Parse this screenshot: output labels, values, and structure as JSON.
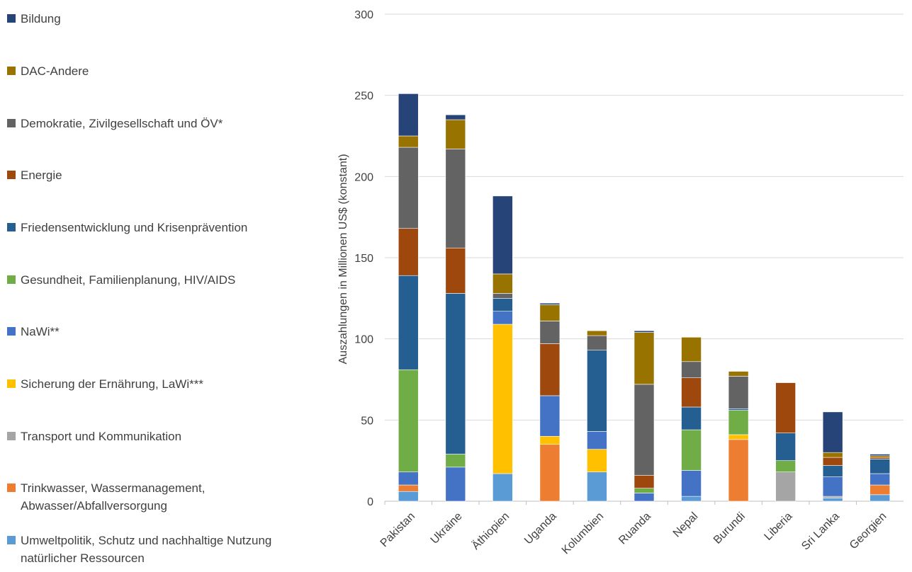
{
  "chart_data": {
    "type": "bar",
    "stacked": true,
    "ylabel": "Auszahlungen in Millionen US$ (konstant)",
    "xlabel": "",
    "ylim": [
      0,
      300
    ],
    "yticks": [
      0,
      50,
      100,
      150,
      200,
      250,
      300
    ],
    "grid": true,
    "legend_position": "left",
    "categories": [
      "Pakistan",
      "Ukraine",
      "Äthiopien",
      "Uganda",
      "Kolumbien",
      "Ruanda",
      "Nepal",
      "Burundi",
      "Liberia",
      "Sri Lanka",
      "Georgien"
    ],
    "series": [
      {
        "name": "Umweltpolitik, Schutz und nachhaltige Nutzung natürlicher Ressourcen",
        "color": "#5B9BD5",
        "values": [
          6,
          0,
          17,
          0,
          18,
          0,
          3,
          0,
          0,
          2,
          4
        ]
      },
      {
        "name": "Trinkwasser, Wassermanagement, Abwasser/Abfallversorgung",
        "color": "#ED7D31",
        "values": [
          4,
          0,
          0,
          35,
          0,
          0,
          0,
          38,
          0,
          0,
          6
        ]
      },
      {
        "name": "Transport und Kommunikation",
        "color": "#A5A5A5",
        "values": [
          0,
          0,
          0,
          0,
          0,
          0,
          0,
          0,
          18,
          1,
          0
        ]
      },
      {
        "name": "Sicherung der Ernährung, LaWi***",
        "color": "#FFC000",
        "values": [
          0,
          0,
          92,
          5,
          14,
          0,
          0,
          3,
          0,
          0,
          0
        ]
      },
      {
        "name": "NaWi**",
        "color": "#4472C4",
        "values": [
          8,
          21,
          8,
          25,
          11,
          5,
          16,
          0,
          0,
          12,
          7
        ]
      },
      {
        "name": "Gesundheit, Familienplanung, HIV/AIDS",
        "color": "#70AD47",
        "values": [
          63,
          8,
          0,
          0,
          0,
          3,
          25,
          15,
          7,
          0,
          0
        ]
      },
      {
        "name": "Friedensentwicklung und Krisenprävention",
        "color": "#255E91",
        "values": [
          58,
          99,
          8,
          0,
          50,
          0,
          14,
          1,
          17,
          7,
          9
        ]
      },
      {
        "name": "Energie",
        "color": "#9E480E",
        "values": [
          29,
          28,
          0,
          32,
          0,
          8,
          18,
          0,
          31,
          5,
          1
        ]
      },
      {
        "name": "Demokratie, Zivilgesellschaft und ÖV*",
        "color": "#636363",
        "values": [
          50,
          61,
          3,
          14,
          9,
          56,
          10,
          20,
          0,
          0,
          0
        ]
      },
      {
        "name": "DAC-Andere",
        "color": "#997300",
        "values": [
          7,
          18,
          12,
          10,
          3,
          32,
          15,
          3,
          0,
          3,
          1
        ]
      },
      {
        "name": "Bildung",
        "color": "#264478",
        "values": [
          26,
          3,
          48,
          1,
          0,
          1,
          0,
          0,
          0,
          25,
          1
        ]
      }
    ]
  },
  "legend": [
    {
      "label": "Bildung",
      "color": "#264478"
    },
    {
      "label": "DAC-Andere",
      "color": "#997300"
    },
    {
      "label": "Demokratie, Zivilgesellschaft und ÖV*",
      "color": "#636363"
    },
    {
      "label": "Energie",
      "color": "#9E480E"
    },
    {
      "label": "Friedensentwicklung und Krisenprävention",
      "color": "#255E91"
    },
    {
      "label": "Gesundheit, Familienplanung, HIV/AIDS",
      "color": "#70AD47"
    },
    {
      "label": "NaWi**",
      "color": "#4472C4"
    },
    {
      "label": "Sicherung der Ernährung, LaWi***",
      "color": "#FFC000"
    },
    {
      "label": "Transport und Kommunikation",
      "color": "#A5A5A5"
    },
    {
      "label": "Trinkwasser, Wassermanagement, Abwasser/Abfallversorgung",
      "color": "#ED7D31"
    },
    {
      "label": "Umweltpolitik, Schutz und nachhaltige Nutzung natürlicher Ressourcen",
      "color": "#5B9BD5"
    }
  ]
}
